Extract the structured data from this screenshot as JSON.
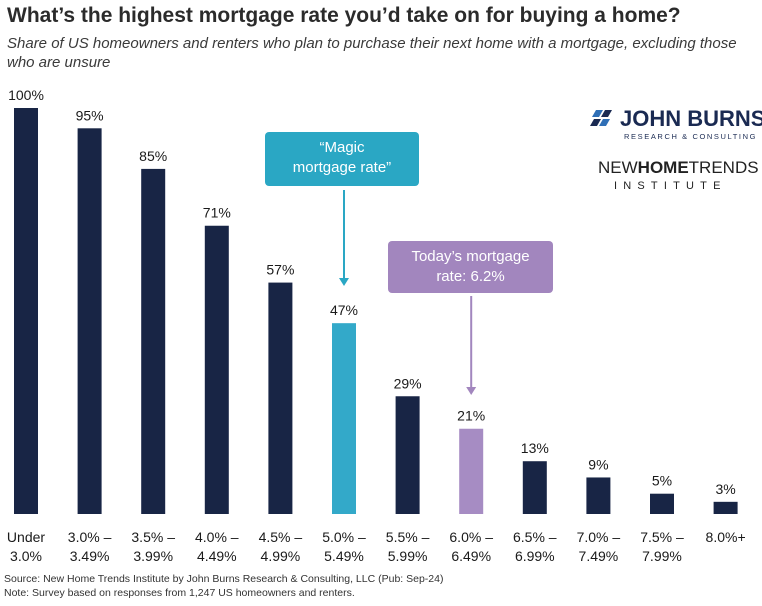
{
  "title": "What’s the highest mortgage rate you’d take on for buying a home?",
  "subtitle": "Share of US homeowners and renters who plan to purchase their next home with a mortgage, excluding those who are unsure",
  "chart_data": {
    "type": "bar",
    "categories": [
      [
        "Under",
        "3.0%"
      ],
      [
        "3.0% –",
        "3.49%"
      ],
      [
        "3.5% –",
        "3.99%"
      ],
      [
        "4.0% –",
        "4.49%"
      ],
      [
        "4.5% –",
        "4.99%"
      ],
      [
        "5.0% –",
        "5.49%"
      ],
      [
        "5.5% –",
        "5.99%"
      ],
      [
        "6.0% –",
        "6.49%"
      ],
      [
        "6.5% –",
        "6.99%"
      ],
      [
        "7.0% –",
        "7.49%"
      ],
      [
        "7.5% –",
        "7.99%"
      ],
      [
        "8.0%+",
        ""
      ]
    ],
    "values": [
      100,
      95,
      85,
      71,
      57,
      47,
      29,
      21,
      13,
      9,
      5,
      3
    ],
    "value_labels": [
      "100%",
      "95%",
      "85%",
      "71%",
      "57%",
      "47%",
      "29%",
      "21%",
      "13%",
      "9%",
      "5%",
      "3%"
    ],
    "ylim": [
      0,
      100
    ],
    "grid": false,
    "bar_colors": [
      "#182545",
      "#182545",
      "#182545",
      "#182545",
      "#182545",
      "#33a9c9",
      "#182545",
      "#a68cc3",
      "#182545",
      "#182545",
      "#182545",
      "#182545"
    ],
    "annotations": [
      {
        "text": "“Magic mortgage rate”",
        "lines": [
          "“Magic",
          "mortgage rate”"
        ],
        "target_index": 5,
        "color": "#2aa7c4"
      },
      {
        "text": "Today’s mortgage rate: 6.2%",
        "lines": [
          "Today’s mortgage",
          "rate: 6.2%"
        ],
        "target_index": 7,
        "color": "#a286be"
      }
    ]
  },
  "logos": {
    "john_burns": {
      "name": "JOHN BURNS",
      "tagline": "RESEARCH & CONSULTING"
    },
    "nht": {
      "name_light": "NEW",
      "name_bold": "HOME",
      "name_end": "TRENDS",
      "sub": "INSTITUTE"
    }
  },
  "footnotes": {
    "source": "Source: New Home Trends Institute by John Burns Research & Consulting, LLC (Pub: Sep-24)",
    "note": "Note: Survey based on responses from 1,247 US homeowners and renters."
  }
}
